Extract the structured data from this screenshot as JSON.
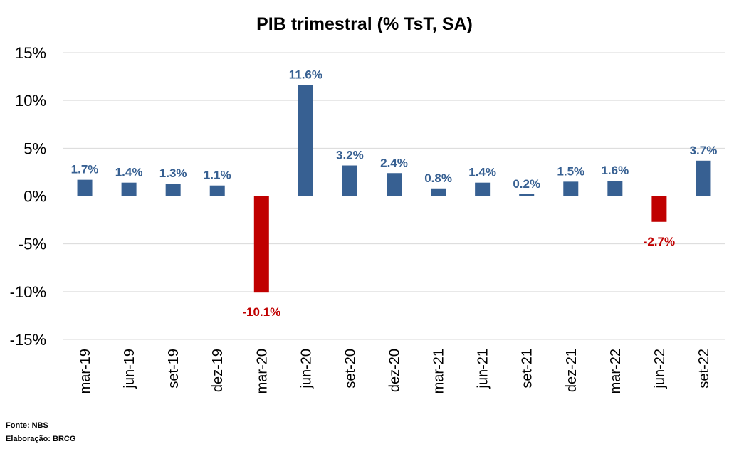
{
  "chart_data": {
    "type": "bar",
    "title": "PIB trimestral (% TsT, SA)",
    "xlabel": "",
    "ylabel": "",
    "ylim": [
      -15,
      15
    ],
    "yticks": [
      15,
      10,
      5,
      0,
      -5,
      -10,
      -15
    ],
    "ytick_labels": [
      "15%",
      "10%",
      "5%",
      "0%",
      "-5%",
      "-10%",
      "-15%"
    ],
    "grid": true,
    "legend": "none",
    "colors": {
      "positive": "#376092",
      "negative": "#C00000",
      "grid": "#D9D9D9"
    },
    "categories": [
      "mar-19",
      "jun-19",
      "set-19",
      "dez-19",
      "mar-20",
      "jun-20",
      "set-20",
      "dez-20",
      "mar-21",
      "jun-21",
      "set-21",
      "dez-21",
      "mar-22",
      "jun-22",
      "set-22"
    ],
    "values": [
      1.7,
      1.4,
      1.3,
      1.1,
      -10.1,
      11.6,
      3.2,
      2.4,
      0.8,
      1.4,
      0.2,
      1.5,
      1.6,
      -2.7,
      3.7
    ],
    "data_labels": [
      "1.7%",
      "1.4%",
      "1.3%",
      "1.1%",
      "-10.1%",
      "11.6%",
      "3.2%",
      "2.4%",
      "0.8%",
      "1.4%",
      "0.2%",
      "1.5%",
      "1.6%",
      "-2.7%",
      "3.7%"
    ]
  },
  "footer": {
    "source": "Fonte: NBS",
    "author": "Elaboração: BRCG"
  }
}
